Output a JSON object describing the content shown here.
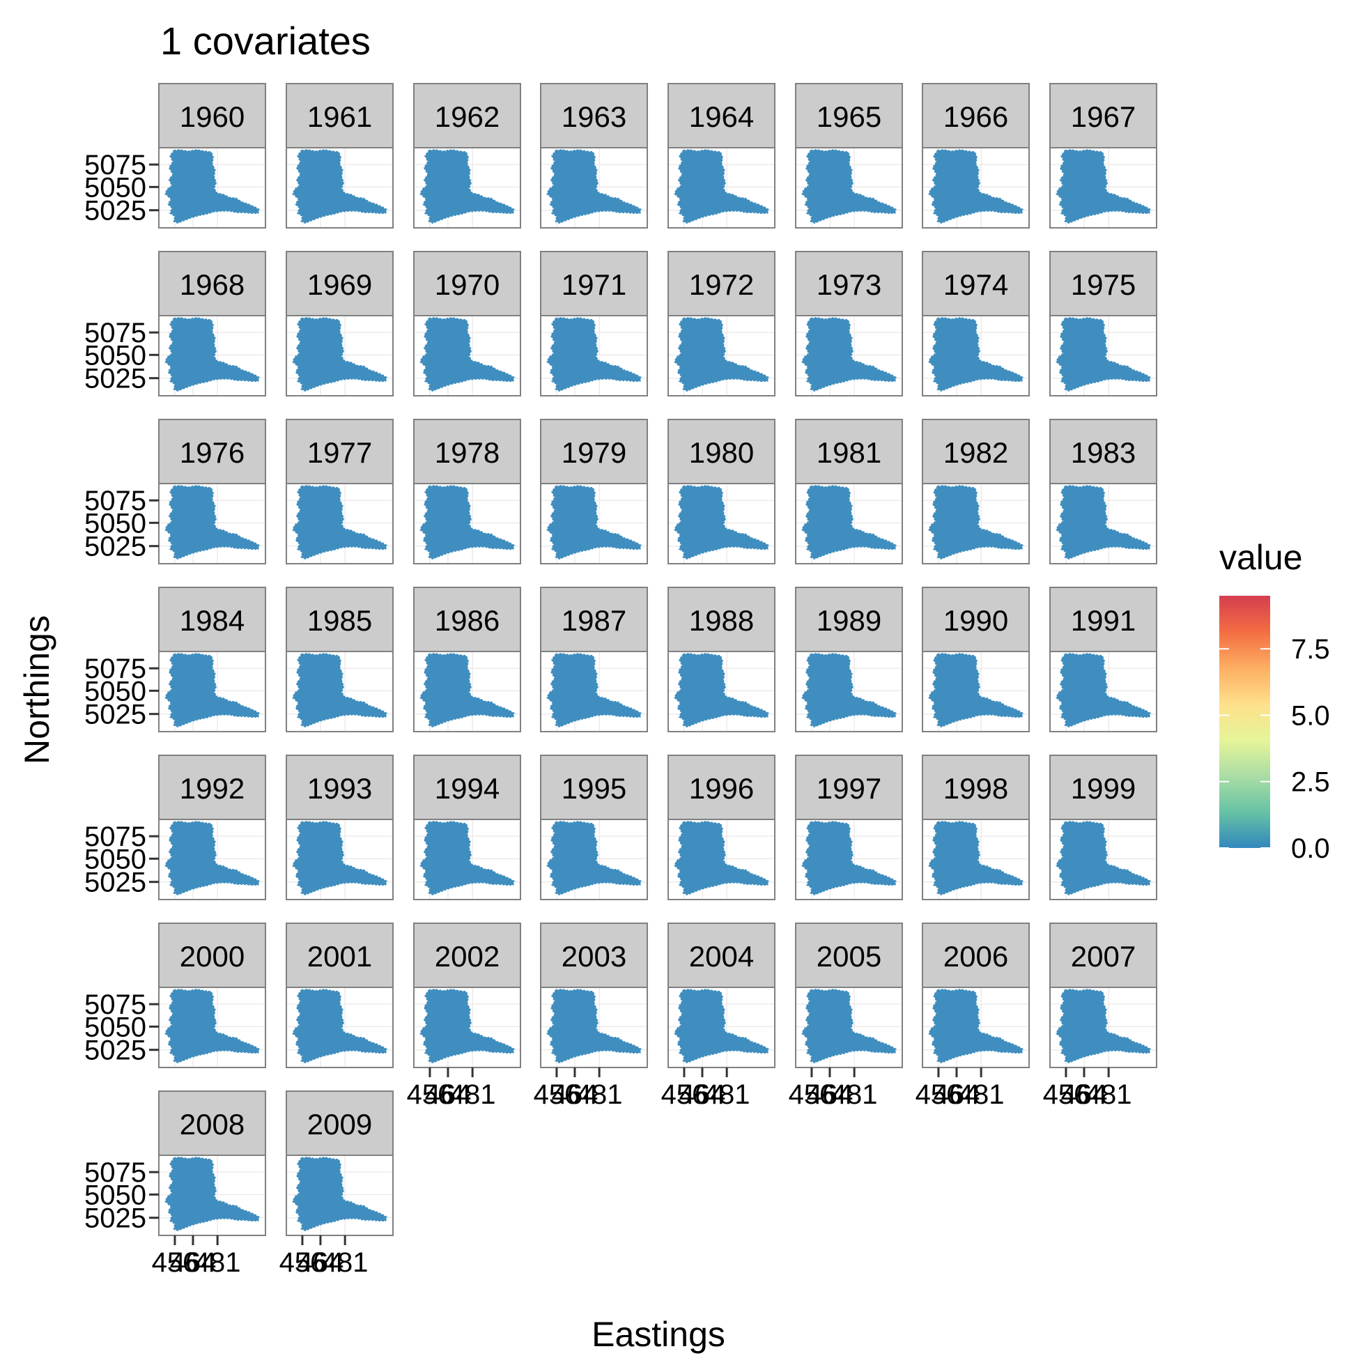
{
  "chart_data": {
    "type": "heatmap",
    "title": "1 covariates",
    "xlabel": "Eastings",
    "ylabel": "Northings",
    "facet_variable": "year",
    "facets": [
      "1960",
      "1961",
      "1962",
      "1963",
      "1964",
      "1965",
      "1966",
      "1967",
      "1968",
      "1969",
      "1970",
      "1971",
      "1972",
      "1973",
      "1974",
      "1975",
      "1976",
      "1977",
      "1978",
      "1979",
      "1980",
      "1981",
      "1982",
      "1983",
      "1984",
      "1985",
      "1986",
      "1987",
      "1988",
      "1989",
      "1990",
      "1991",
      "1992",
      "1993",
      "1994",
      "1995",
      "1996",
      "1997",
      "1998",
      "1999",
      "2000",
      "2001",
      "2002",
      "2003",
      "2004",
      "2005",
      "2006",
      "2007",
      "2008",
      "2009"
    ],
    "facet_columns": 8,
    "y_ticks": [
      5025,
      5050,
      5075
    ],
    "x_tick_labels": [
      "456",
      "464",
      "481"
    ],
    "legend": {
      "title": "value",
      "placement": "right",
      "ticks": [
        0.0,
        2.5,
        5.0,
        7.5
      ],
      "tick_labels": [
        "0.0",
        "2.5",
        "5.0",
        "7.5"
      ],
      "range": [
        0.0,
        9.5
      ],
      "colors": [
        "#3288bd",
        "#66c2a5",
        "#abdda4",
        "#e6f598",
        "#fee08b",
        "#fdae61",
        "#f46d43",
        "#d53e4f"
      ]
    },
    "cell_value_approx": 0.3,
    "cell_color": "#3f8ebf",
    "grid": true,
    "panel_border_color": "#808080",
    "strip_fill": "#cccccc"
  }
}
